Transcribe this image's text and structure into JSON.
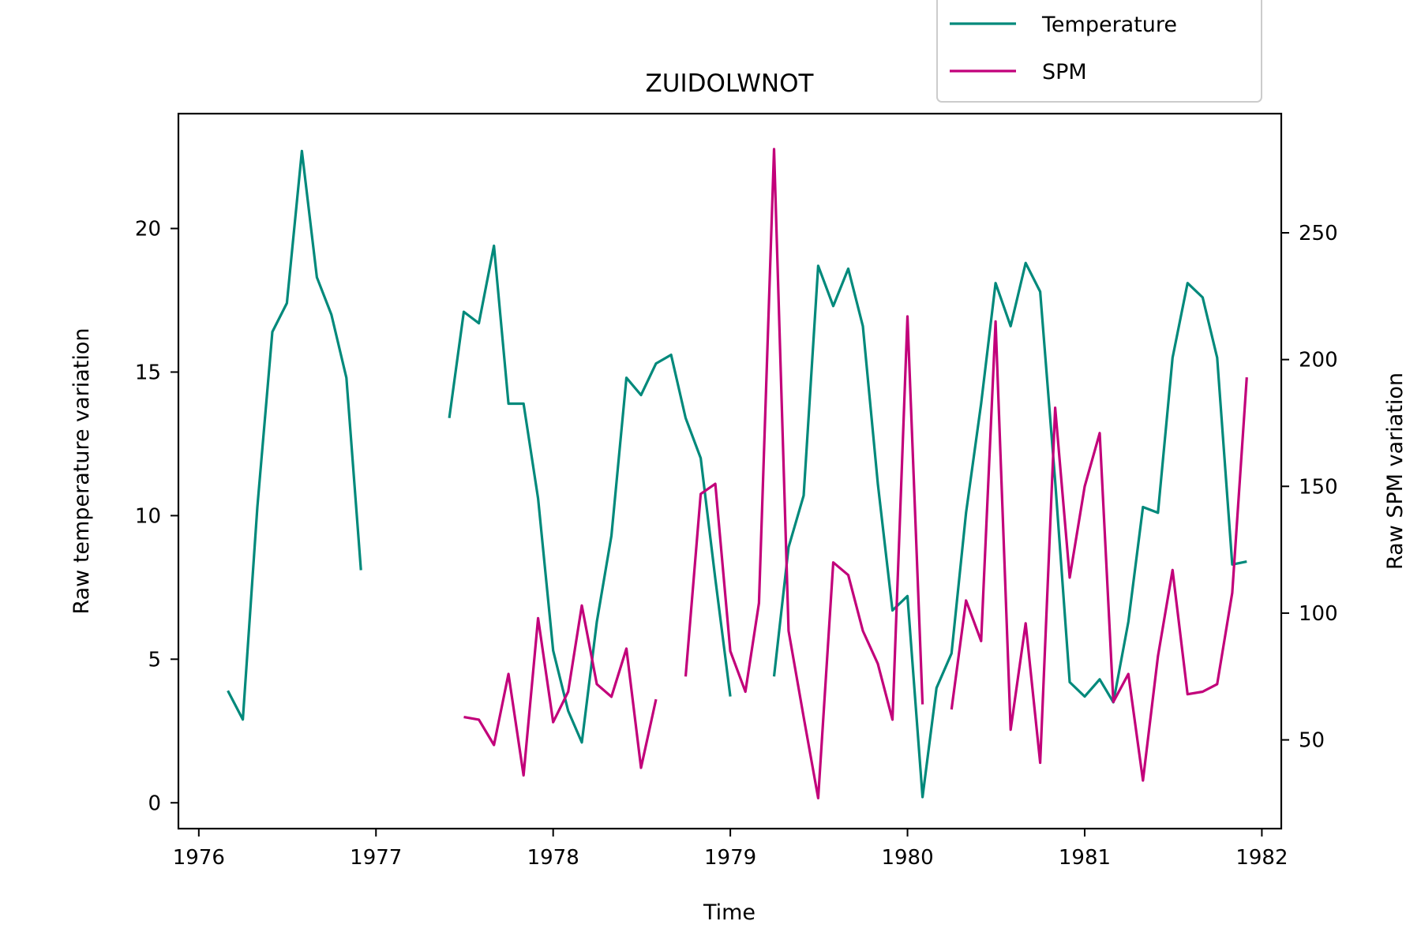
{
  "chart_data": {
    "type": "line",
    "title": "ZUIDOLWNOT",
    "xlabel": "Time",
    "ylabel_left": "Raw temperature variation",
    "ylabel_right": "Raw SPM variation",
    "xlim": [
      "1975-11-20",
      "1982-02-10"
    ],
    "ylim_left": [
      -0.9,
      24
    ],
    "ylim_right": [
      15,
      297
    ],
    "x_ticks": [
      "1976",
      "1977",
      "1978",
      "1979",
      "1980",
      "1981",
      "1982"
    ],
    "y_ticks_left": [
      "0",
      "5",
      "10",
      "15",
      "20"
    ],
    "y_ticks_right": [
      "50",
      "100",
      "150",
      "200",
      "250"
    ],
    "grid": false,
    "legend_position": "top-right",
    "series": [
      {
        "name": "Temperature",
        "axis": "left",
        "color": "#00897b",
        "segments": [
          [
            [
              "1976-03-01",
              3.9
            ],
            [
              "1976-04-01",
              2.9
            ],
            [
              "1976-05-01",
              10.3
            ],
            [
              "1976-06-01",
              16.4
            ],
            [
              "1976-07-01",
              17.4
            ],
            [
              "1976-08-01",
              22.7
            ],
            [
              "1976-09-01",
              18.3
            ],
            [
              "1976-10-01",
              17.0
            ],
            [
              "1976-11-01",
              14.8
            ],
            [
              "1976-12-01",
              8.1
            ]
          ],
          [
            [
              "1977-06-01",
              13.4
            ],
            [
              "1977-07-01",
              17.1
            ],
            [
              "1977-08-01",
              16.7
            ],
            [
              "1977-09-01",
              19.4
            ],
            [
              "1977-10-01",
              13.9
            ],
            [
              "1977-11-01",
              13.9
            ],
            [
              "1977-12-01",
              10.6
            ],
            [
              "1978-01-01",
              5.3
            ],
            [
              "1978-02-01",
              3.2
            ],
            [
              "1978-03-01",
              2.1
            ],
            [
              "1978-04-01",
              6.3
            ],
            [
              "1978-05-01",
              9.3
            ],
            [
              "1978-06-01",
              14.8
            ],
            [
              "1978-07-01",
              14.2
            ],
            [
              "1978-08-01",
              15.3
            ],
            [
              "1978-09-01",
              15.6
            ],
            [
              "1978-10-01",
              13.4
            ],
            [
              "1978-11-01",
              12.0
            ],
            [
              "1978-12-01",
              7.8
            ],
            [
              "1979-01-01",
              3.7
            ]
          ],
          [
            [
              "1979-04-01",
              4.4
            ],
            [
              "1979-05-01",
              8.9
            ],
            [
              "1979-06-01",
              10.7
            ],
            [
              "1979-07-01",
              18.7
            ],
            [
              "1979-08-01",
              17.3
            ],
            [
              "1979-09-01",
              18.6
            ],
            [
              "1979-10-01",
              16.6
            ],
            [
              "1979-11-01",
              11.1
            ],
            [
              "1979-12-01",
              6.7
            ],
            [
              "1980-01-01",
              7.2
            ],
            [
              "1980-02-01",
              0.2
            ],
            [
              "1980-03-01",
              4.0
            ],
            [
              "1980-04-01",
              5.2
            ],
            [
              "1980-05-01",
              10.1
            ],
            [
              "1980-06-01",
              13.9
            ],
            [
              "1980-07-01",
              18.1
            ],
            [
              "1980-08-01",
              16.6
            ],
            [
              "1980-09-01",
              18.8
            ],
            [
              "1980-10-01",
              17.8
            ],
            [
              "1980-11-01",
              11.2
            ],
            [
              "1980-12-01",
              4.2
            ],
            [
              "1981-01-01",
              3.7
            ],
            [
              "1981-02-01",
              4.3
            ],
            [
              "1981-03-01",
              3.5
            ],
            [
              "1981-04-01",
              6.3
            ],
            [
              "1981-05-01",
              10.3
            ],
            [
              "1981-06-01",
              10.1
            ],
            [
              "1981-07-01",
              15.5
            ],
            [
              "1981-08-01",
              18.1
            ],
            [
              "1981-09-01",
              17.6
            ],
            [
              "1981-10-01",
              15.5
            ],
            [
              "1981-11-01",
              8.3
            ],
            [
              "1981-12-01",
              8.4
            ]
          ]
        ]
      },
      {
        "name": "SPM",
        "axis": "right",
        "color": "#c2007a",
        "segments": [
          [
            [
              "1977-07-01",
              59
            ],
            [
              "1977-08-01",
              58
            ],
            [
              "1977-09-01",
              48
            ],
            [
              "1977-10-01",
              76
            ],
            [
              "1977-11-01",
              36
            ],
            [
              "1977-12-01",
              98
            ],
            [
              "1978-01-01",
              57
            ],
            [
              "1978-02-01",
              69
            ],
            [
              "1978-03-01",
              103
            ],
            [
              "1978-04-01",
              72
            ],
            [
              "1978-05-01",
              67
            ],
            [
              "1978-06-01",
              86
            ],
            [
              "1978-07-01",
              39
            ],
            [
              "1978-08-01",
              66
            ]
          ],
          [
            [
              "1978-10-01",
              75
            ],
            [
              "1978-11-01",
              147
            ],
            [
              "1978-12-01",
              151
            ],
            [
              "1979-01-01",
              85
            ],
            [
              "1979-02-01",
              69
            ],
            [
              "1979-03-01",
              104
            ],
            [
              "1979-04-01",
              283
            ],
            [
              "1979-05-01",
              93
            ],
            [
              "1979-06-01",
              59
            ],
            [
              "1979-07-01",
              27
            ],
            [
              "1979-08-01",
              120
            ],
            [
              "1979-09-01",
              115
            ],
            [
              "1979-10-01",
              93
            ],
            [
              "1979-11-01",
              80
            ],
            [
              "1979-12-01",
              58
            ],
            [
              "1980-01-01",
              217
            ],
            [
              "1980-02-01",
              64
            ]
          ],
          [
            [
              "1980-04-01",
              62
            ],
            [
              "1980-05-01",
              105
            ],
            [
              "1980-06-01",
              89
            ],
            [
              "1980-07-01",
              215
            ],
            [
              "1980-08-01",
              54
            ],
            [
              "1980-09-01",
              96
            ],
            [
              "1980-10-01",
              41
            ],
            [
              "1980-11-01",
              181
            ],
            [
              "1980-12-01",
              114
            ],
            [
              "1981-01-01",
              150
            ],
            [
              "1981-02-01",
              171
            ],
            [
              "1981-03-01",
              65
            ],
            [
              "1981-04-01",
              76
            ],
            [
              "1981-05-01",
              34
            ],
            [
              "1981-06-01",
              83
            ],
            [
              "1981-07-01",
              117
            ],
            [
              "1981-08-01",
              68
            ],
            [
              "1981-09-01",
              69
            ],
            [
              "1981-10-01",
              72
            ],
            [
              "1981-11-01",
              108
            ],
            [
              "1981-12-01",
              193
            ]
          ]
        ]
      }
    ]
  }
}
